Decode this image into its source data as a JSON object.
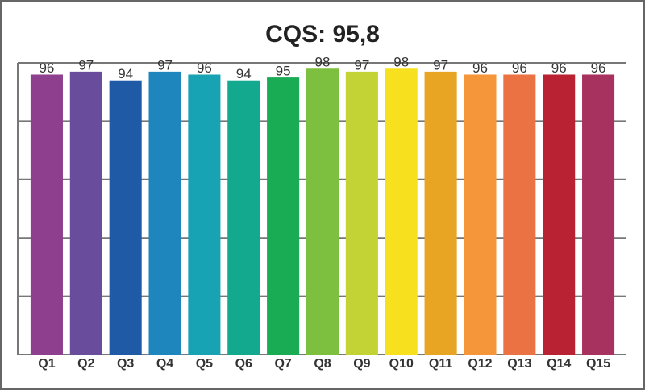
{
  "chart_data": {
    "type": "bar",
    "title": "CQS: 95,8",
    "categories": [
      "Q1",
      "Q2",
      "Q3",
      "Q4",
      "Q5",
      "Q6",
      "Q7",
      "Q8",
      "Q9",
      "Q10",
      "Q11",
      "Q12",
      "Q13",
      "Q14",
      "Q15"
    ],
    "values": [
      96,
      97,
      94,
      97,
      96,
      94,
      95,
      98,
      97,
      98,
      97,
      96,
      96,
      96,
      96
    ],
    "colors": [
      "#8e3f8e",
      "#6a4c9c",
      "#1f5aa6",
      "#1e86bd",
      "#17a3b4",
      "#13a98f",
      "#1aab55",
      "#7dbf3e",
      "#c3d234",
      "#f7e11e",
      "#e8a423",
      "#f5963a",
      "#eb7243",
      "#b82233",
      "#a8325f"
    ],
    "ylim": [
      0,
      100
    ],
    "yticks": [
      0,
      20,
      40,
      60,
      80,
      100
    ],
    "grid": true
  }
}
